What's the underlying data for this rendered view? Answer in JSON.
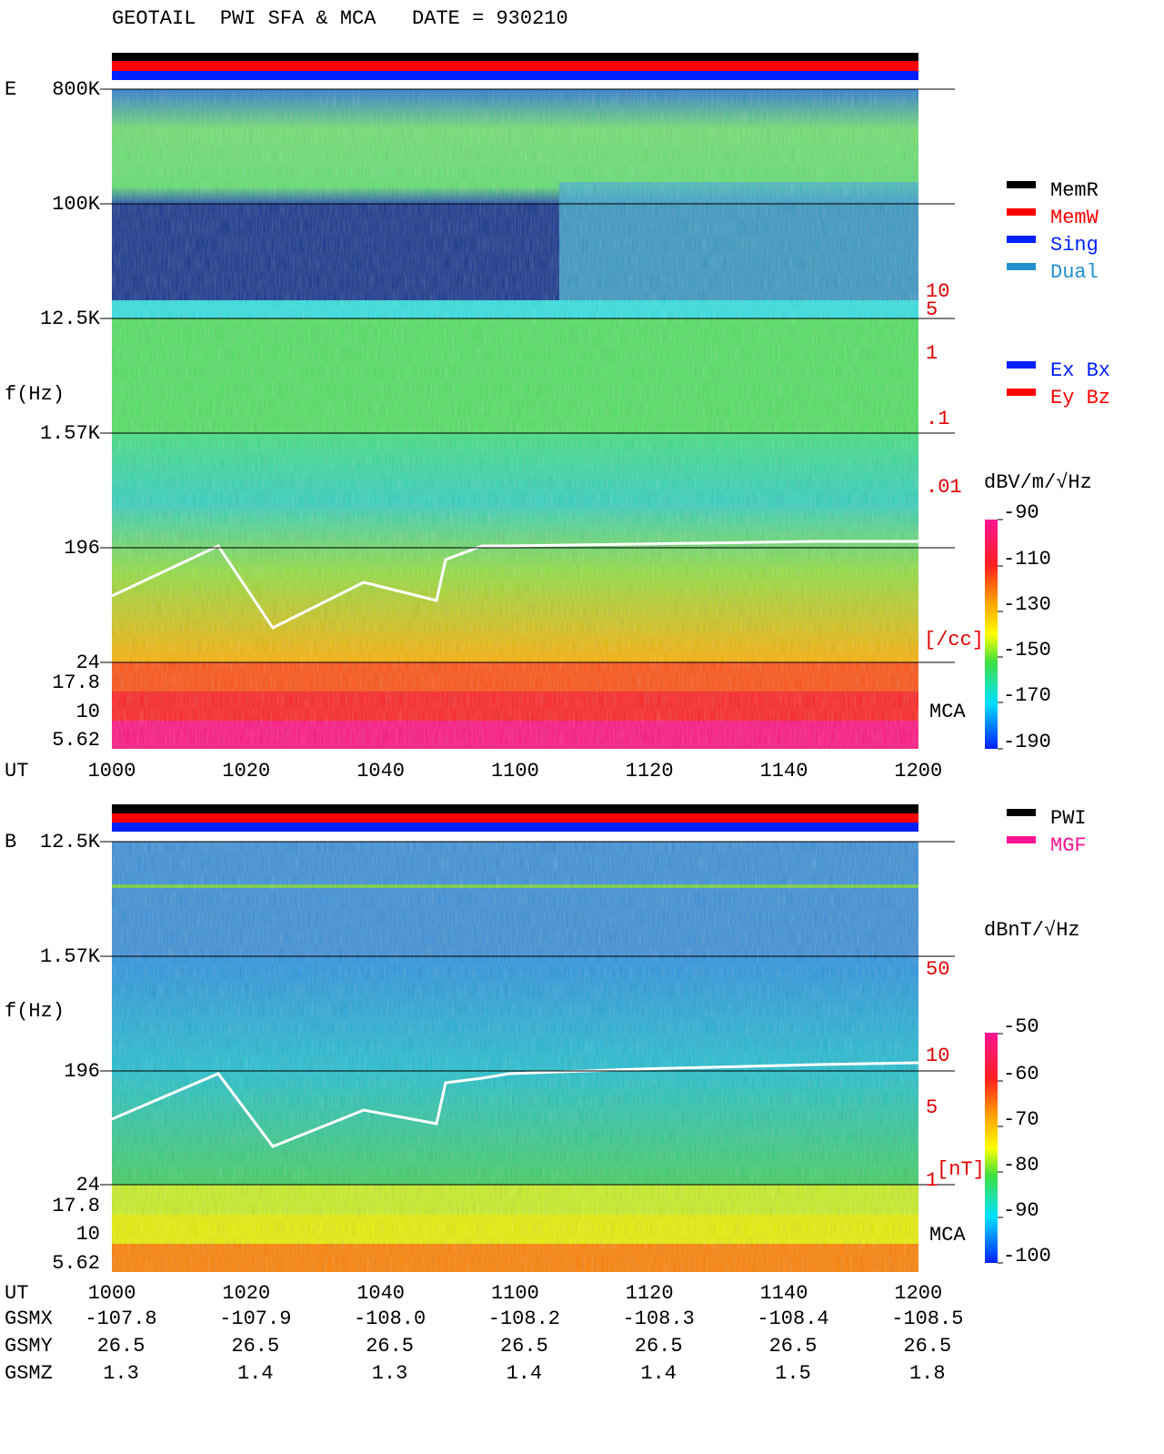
{
  "header": {
    "title": "GEOTAIL  PWI SFA & MCA   DATE = 930210"
  },
  "panel_e": {
    "label": "E",
    "y_axis_label": "f(Hz)",
    "freq_labels": [
      "800K",
      "100K",
      "12.5K",
      "1.57K",
      "196",
      "24",
      "17.8",
      "10",
      "5.62"
    ],
    "density_labels": [
      "10",
      "5",
      "1",
      ".1",
      ".01"
    ],
    "density_unit": "[/cc]",
    "mca_label": "MCA",
    "time_label": "UT",
    "time_labels": [
      "1000",
      "1020",
      "1040",
      "1100",
      "1120",
      "1140",
      "1200"
    ],
    "legend": [
      "MemR",
      "MemW",
      "Sing",
      "Dual"
    ],
    "component_legend": [
      "Ex Bx",
      "Ey Bz"
    ],
    "colorbar_label": "dBV/m/√Hz",
    "colorbar_ticks": [
      "-90",
      "-110",
      "-130",
      "-150",
      "-170",
      "-190"
    ]
  },
  "panel_b": {
    "label": "B",
    "y_axis_label": "f(Hz)",
    "freq_labels": [
      "12.5K",
      "1.57K",
      "196",
      "24",
      "17.8",
      "10",
      "5.62"
    ],
    "field_labels": [
      "50",
      "10",
      "5",
      "1"
    ],
    "field_unit": "[nT]",
    "mca_label": "MCA",
    "legend": [
      "PWI",
      "MGF"
    ],
    "colorbar_label": "dBnT/√Hz",
    "colorbar_ticks": [
      "-50",
      "-60",
      "-70",
      "-80",
      "-90",
      "-100"
    ]
  },
  "orbit": {
    "rows": [
      {
        "label": "UT",
        "values": [
          "1000",
          "1020",
          "1040",
          "1100",
          "1120",
          "1140",
          "1200"
        ]
      },
      {
        "label": "GSMX",
        "values": [
          "-107.8",
          "-107.9",
          "-108.0",
          "-108.2",
          "-108.3",
          "-108.4",
          "-108.5"
        ]
      },
      {
        "label": "GSMY",
        "values": [
          "26.5",
          "26.5",
          "26.5",
          "26.5",
          "26.5",
          "26.5",
          "26.5"
        ]
      },
      {
        "label": "GSMZ",
        "values": [
          "1.3",
          "1.4",
          "1.3",
          "1.4",
          "1.4",
          "1.5",
          "1.8"
        ]
      }
    ]
  }
}
